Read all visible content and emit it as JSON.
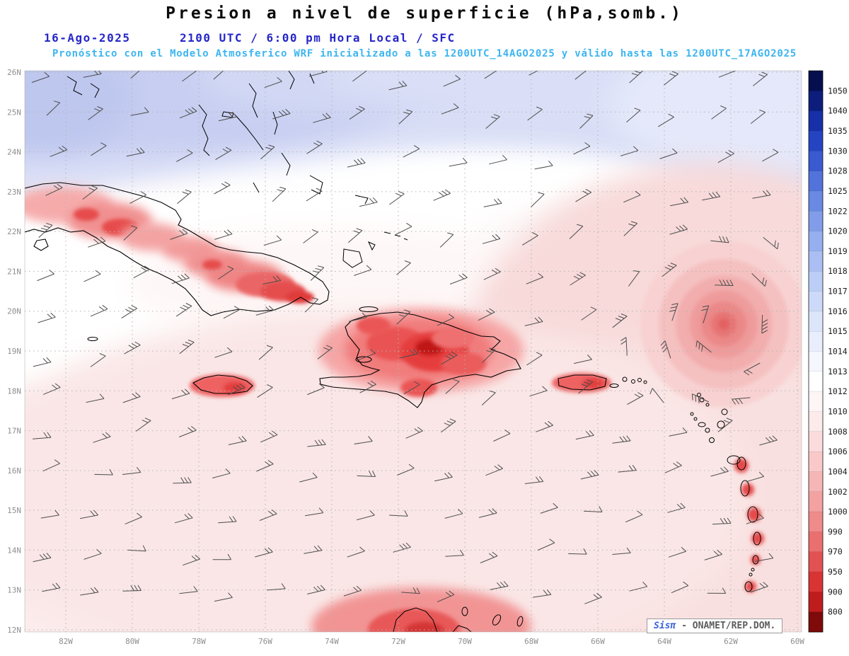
{
  "title": "Presion a nivel de superficie (hPa,somb.)",
  "subtitle": {
    "date": "16-Ago-2025",
    "time": "2100 UTC / 6:00 pm Hora Local / SFC",
    "forecast": "Pronóstico con el Modelo Atmosferico WRF inicializado a las 1200UTC_14AGO2025 y válido hasta las 1200UTC_17AGO2025"
  },
  "map": {
    "lat_labels": [
      "26N",
      "25N",
      "24N",
      "23N",
      "22N",
      "21N",
      "20N",
      "19N",
      "18N",
      "17N",
      "16N",
      "15N",
      "14N",
      "13N",
      "12N"
    ],
    "lon_labels": [
      "82W",
      "80W",
      "78W",
      "76W",
      "74W",
      "72W",
      "70W",
      "68W",
      "66W",
      "64W",
      "62W",
      "60W"
    ],
    "unit": "hPa"
  },
  "colorbar": {
    "labels": [
      1050,
      1040,
      1035,
      1030,
      1028,
      1025,
      1022,
      1020,
      1019,
      1018,
      1017,
      1016,
      1015,
      1014,
      1013,
      1012,
      1010,
      1008,
      1006,
      1004,
      1002,
      1000,
      990,
      970,
      950,
      900,
      800
    ],
    "segment_colors": [
      "#050f4e",
      "#0d1d7c",
      "#1730a8",
      "#2444c2",
      "#3a5ad0",
      "#5273da",
      "#6989e2",
      "#819de9",
      "#96aff0",
      "#aabef3",
      "#bccdf6",
      "#cdd9f8",
      "#dce5fa",
      "#e9eefc",
      "#f5f7fe",
      "#ffffff",
      "#fef6f6",
      "#fdeaea",
      "#fbdbdb",
      "#f9c9c9",
      "#f6b6b6",
      "#f3a1a1",
      "#ef8b8b",
      "#ea7070",
      "#e35252",
      "#d93434",
      "#bf1d1d",
      "#7e0a0a"
    ]
  },
  "style_colors": {
    "subtitle_blue": "#2626c9",
    "subtitle_cyan": "#3db5f0",
    "axis_label_gray": "#8f8f8f",
    "grid_gray": "#b3b3b3",
    "barb_gray": "#4d4d4d"
  },
  "watermark": {
    "brand": "Sisπ",
    "text": "- ONAMET/REP.DOM."
  }
}
